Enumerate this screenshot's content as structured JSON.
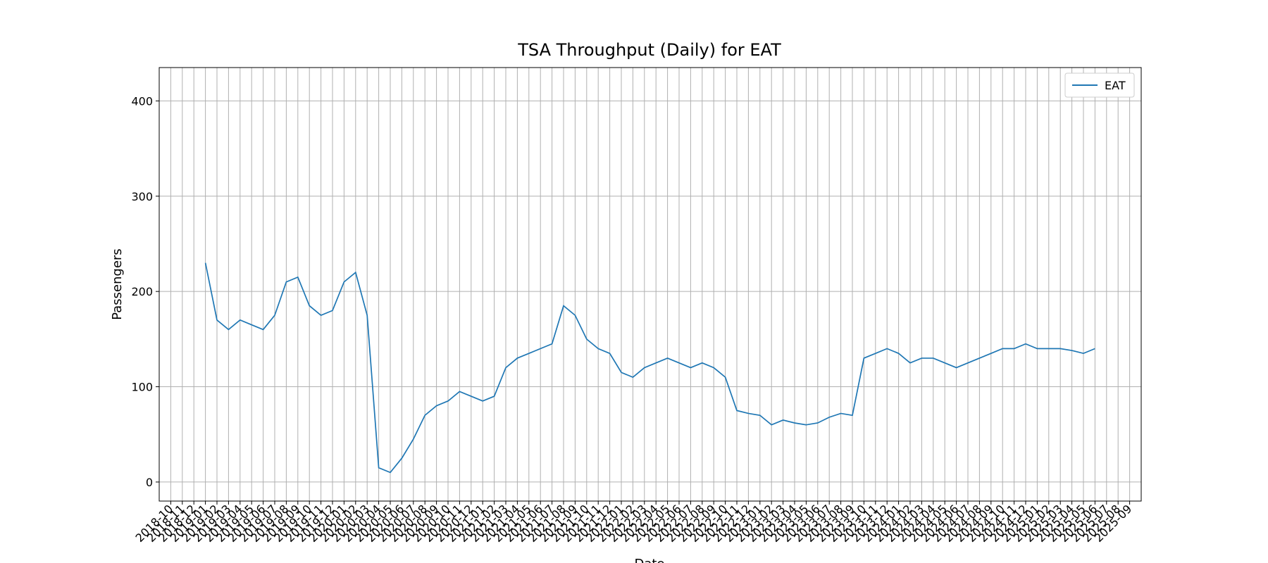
{
  "chart_data": {
    "type": "line",
    "title": "TSA Throughput (Daily) for EAT",
    "x_label": "Date",
    "y_label": "Passengers",
    "x": [
      "2019-01",
      "2019-02",
      "2019-03",
      "2019-04",
      "2019-05",
      "2019-06",
      "2019-07",
      "2019-08",
      "2019-09",
      "2019-10",
      "2019-11",
      "2019-12",
      "2020-01",
      "2020-02",
      "2020-03",
      "2020-04",
      "2020-05",
      "2020-06",
      "2020-07",
      "2020-08",
      "2020-09",
      "2020-10",
      "2020-11",
      "2020-12",
      "2021-01",
      "2021-02",
      "2021-03",
      "2021-04",
      "2021-05",
      "2021-06",
      "2021-07",
      "2021-08",
      "2021-09",
      "2021-10",
      "2021-11",
      "2021-12",
      "2022-01",
      "2022-02",
      "2022-03",
      "2022-04",
      "2022-05",
      "2022-06",
      "2022-07",
      "2022-08",
      "2022-09",
      "2022-10",
      "2022-11",
      "2022-12",
      "2023-01",
      "2023-02",
      "2023-03",
      "2023-04",
      "2023-05",
      "2023-06",
      "2023-07",
      "2023-08",
      "2023-09",
      "2023-10",
      "2023-11",
      "2023-12",
      "2024-01",
      "2024-02",
      "2024-03",
      "2024-04",
      "2024-05",
      "2024-06",
      "2024-07",
      "2024-08",
      "2024-09",
      "2024-10",
      "2024-11",
      "2024-12",
      "2025-01",
      "2025-02",
      "2025-03",
      "2025-04",
      "2025-05",
      "2025-06"
    ],
    "series": [
      {
        "name": "EAT",
        "color": "#1f77b4",
        "values": [
          230,
          170,
          160,
          170,
          165,
          160,
          175,
          210,
          215,
          185,
          175,
          180,
          210,
          220,
          175,
          15,
          10,
          25,
          45,
          70,
          80,
          85,
          95,
          90,
          85,
          90,
          120,
          130,
          135,
          140,
          145,
          185,
          175,
          150,
          140,
          135,
          115,
          110,
          120,
          125,
          130,
          125,
          120,
          125,
          120,
          110,
          75,
          72,
          70,
          60,
          65,
          62,
          60,
          62,
          68,
          72,
          70,
          130,
          135,
          140,
          135,
          125,
          130,
          130,
          125,
          120,
          125,
          130,
          135,
          140,
          140,
          145,
          140,
          140,
          140,
          138,
          135,
          140
        ]
      }
    ],
    "xlim": [
      "2018-09",
      "2025-10"
    ],
    "xticks": [
      "2018-10",
      "2018-11",
      "2018-12",
      "2019-01",
      "2019-02",
      "2019-03",
      "2019-04",
      "2019-05",
      "2019-06",
      "2019-07",
      "2019-08",
      "2019-09",
      "2019-10",
      "2019-11",
      "2019-12",
      "2020-01",
      "2020-02",
      "2020-03",
      "2020-04",
      "2020-05",
      "2020-06",
      "2020-07",
      "2020-08",
      "2020-09",
      "2020-10",
      "2020-11",
      "2020-12",
      "2021-01",
      "2021-02",
      "2021-03",
      "2021-04",
      "2021-05",
      "2021-06",
      "2021-07",
      "2021-08",
      "2021-09",
      "2021-10",
      "2021-11",
      "2021-12",
      "2022-01",
      "2022-02",
      "2022-03",
      "2022-04",
      "2022-05",
      "2022-06",
      "2022-07",
      "2022-08",
      "2022-09",
      "2022-10",
      "2022-11",
      "2022-12",
      "2023-01",
      "2023-02",
      "2023-03",
      "2023-04",
      "2023-05",
      "2023-06",
      "2023-07",
      "2023-08",
      "2023-09",
      "2023-10",
      "2023-11",
      "2023-12",
      "2024-01",
      "2024-02",
      "2024-03",
      "2024-04",
      "2024-05",
      "2024-06",
      "2024-07",
      "2024-08",
      "2024-09",
      "2024-10",
      "2024-11",
      "2024-12",
      "2025-01",
      "2025-02",
      "2025-03",
      "2025-04",
      "2025-05",
      "2025-06",
      "2025-07",
      "2025-08",
      "2025-09"
    ],
    "ylim": [
      -20,
      435
    ],
    "yticks": [
      0,
      100,
      200,
      300,
      400
    ],
    "grid": true,
    "legend": "upper right"
  }
}
